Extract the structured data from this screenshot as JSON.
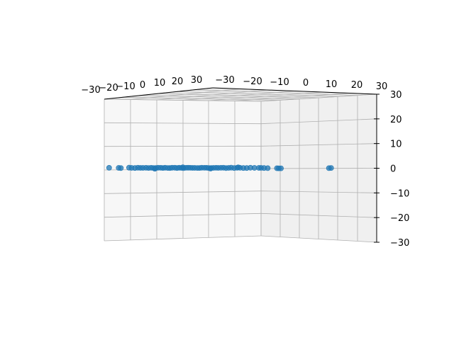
{
  "chart_data": {
    "type": "scatter",
    "projection": "3d",
    "title": "",
    "grid": true,
    "marker_color": "#1f77b4",
    "pane_colors": {
      "left": "#f7f7f7",
      "right": "#f0f0f0",
      "floor": "#ebebeb"
    },
    "x_range": [
      -30,
      30
    ],
    "y_range": [
      -30,
      30
    ],
    "z_range": [
      -30,
      30
    ],
    "top_tick_labels": [
      "−30",
      "−20",
      "−10",
      "0",
      "10",
      "20",
      "30",
      "−30",
      "−20",
      "−10",
      "0",
      "10",
      "20",
      "30"
    ],
    "z_tick_labels": [
      "30",
      "20",
      "10",
      "0",
      "−10",
      "−20",
      "−30"
    ],
    "points": [
      {
        "x": -21.0,
        "y": 0.9,
        "z": 1.0
      },
      {
        "x": -18.4,
        "y": 0.8,
        "z": 1.0
      },
      {
        "x": -17.8,
        "y": 0.6,
        "z": 0.9
      },
      {
        "x": -15.6,
        "y": 1.0,
        "z": 1.1
      },
      {
        "x": -14.9,
        "y": 0.8,
        "z": 1.0
      },
      {
        "x": -14.0,
        "y": 0.7,
        "z": 0.9
      },
      {
        "x": -13.2,
        "y": 0.9,
        "z": 1.1
      },
      {
        "x": -12.5,
        "y": 0.8,
        "z": 1.0
      },
      {
        "x": -11.8,
        "y": 0.6,
        "z": 1.2
      },
      {
        "x": -11.0,
        "y": 1.0,
        "z": 0.9
      },
      {
        "x": -10.3,
        "y": 0.7,
        "z": 1.0
      },
      {
        "x": -9.6,
        "y": 0.8,
        "z": 1.1
      },
      {
        "x": -9.0,
        "y": 0.9,
        "z": 0.8
      },
      {
        "x": -8.3,
        "y": 0.6,
        "z": 1.0
      },
      {
        "x": -7.7,
        "y": 0.8,
        "z": 1.2
      },
      {
        "x": -7.0,
        "y": 1.0,
        "z": 0.9
      },
      {
        "x": -6.4,
        "y": 0.7,
        "z": 1.0
      },
      {
        "x": -5.8,
        "y": 0.9,
        "z": 1.1
      },
      {
        "x": -5.1,
        "y": 0.8,
        "z": 0.9
      },
      {
        "x": -4.5,
        "y": 0.6,
        "z": 1.0
      },
      {
        "x": -3.9,
        "y": 0.8,
        "z": 1.2
      },
      {
        "x": -3.2,
        "y": 1.0,
        "z": 1.0
      },
      {
        "x": -2.6,
        "y": 0.7,
        "z": 0.9
      },
      {
        "x": -2.0,
        "y": 0.9,
        "z": 1.1
      },
      {
        "x": -1.4,
        "y": 0.8,
        "z": 1.0
      },
      {
        "x": -0.8,
        "y": 0.6,
        "z": 0.8
      },
      {
        "x": -0.2,
        "y": 0.8,
        "z": 1.1
      },
      {
        "x": 0.4,
        "y": 1.0,
        "z": 1.0
      },
      {
        "x": 1.0,
        "y": 0.7,
        "z": 1.2
      },
      {
        "x": 1.6,
        "y": 0.9,
        "z": 0.9
      },
      {
        "x": 2.2,
        "y": 0.8,
        "z": 1.0
      },
      {
        "x": 2.9,
        "y": 0.6,
        "z": 1.1
      },
      {
        "x": 3.5,
        "y": 0.8,
        "z": 0.9
      },
      {
        "x": 4.1,
        "y": 1.0,
        "z": 1.0
      },
      {
        "x": 4.8,
        "y": 0.7,
        "z": 1.2
      },
      {
        "x": 5.4,
        "y": 0.9,
        "z": 1.0
      },
      {
        "x": 6.0,
        "y": 0.8,
        "z": 0.8
      },
      {
        "x": 6.7,
        "y": 0.6,
        "z": 1.1
      },
      {
        "x": 7.3,
        "y": 0.8,
        "z": 1.0
      },
      {
        "x": 8.0,
        "y": 1.0,
        "z": 0.9
      },
      {
        "x": 8.6,
        "y": 0.7,
        "z": 1.1
      },
      {
        "x": 9.3,
        "y": 0.9,
        "z": 1.0
      },
      {
        "x": 10.0,
        "y": 0.8,
        "z": 1.2
      },
      {
        "x": 10.7,
        "y": 0.6,
        "z": 0.9
      },
      {
        "x": 11.4,
        "y": 0.8,
        "z": 1.0
      },
      {
        "x": 12.1,
        "y": 1.0,
        "z": 1.1
      },
      {
        "x": 12.9,
        "y": 0.7,
        "z": 0.9
      },
      {
        "x": 13.7,
        "y": 0.9,
        "z": 1.0
      },
      {
        "x": 14.5,
        "y": 0.8,
        "z": 1.1
      },
      {
        "x": 15.4,
        "y": 0.6,
        "z": 1.0
      },
      {
        "x": 16.3,
        "y": 0.8,
        "z": 0.8
      },
      {
        "x": 17.3,
        "y": 1.0,
        "z": 1.0
      },
      {
        "x": 18.4,
        "y": 0.7,
        "z": 1.1
      },
      {
        "x": 19.6,
        "y": 0.9,
        "z": 0.9
      },
      {
        "x": 20.2,
        "y": 0.8,
        "z": 1.0
      },
      {
        "x": 21.0,
        "y": 0.6,
        "z": 1.0
      },
      {
        "x": 22.0,
        "y": 0.8,
        "z": 0.7
      },
      {
        "x": 24.5,
        "y": 0.9,
        "z": 0.5
      },
      {
        "x": 25.0,
        "y": 0.7,
        "z": 0.6
      },
      {
        "x": 25.6,
        "y": 0.8,
        "z": 0.5
      },
      {
        "x": 38.6,
        "y": 0.9,
        "z": 0.6
      },
      {
        "x": 39.2,
        "y": 0.8,
        "z": 0.9
      },
      {
        "x": -8.6,
        "y": 0.2,
        "z": 0.5
      },
      {
        "x": -1.0,
        "y": 1.2,
        "z": 1.4
      },
      {
        "x": 6.5,
        "y": 0.3,
        "z": 0.6
      },
      {
        "x": 14.0,
        "y": 1.1,
        "z": 1.3
      }
    ]
  }
}
